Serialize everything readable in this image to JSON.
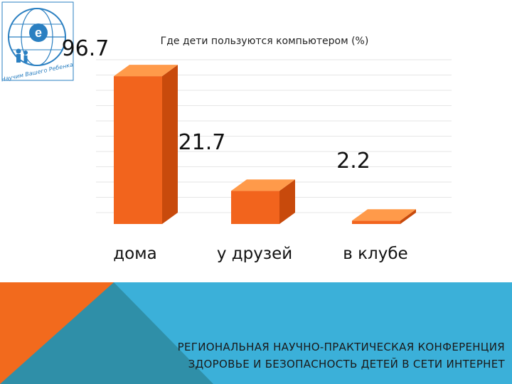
{
  "colors": {
    "bar_front": "#f2641d",
    "bar_top": "#ff9a4a",
    "bar_side": "#c84a0c",
    "footer_blue": "#3bb0d9",
    "footer_orange": "#f26a1d",
    "footer_teal": "#2f8fa8",
    "grid": "#e6e6e6",
    "logo_blue": "#2a7fc1"
  },
  "logo": {
    "text": "Научим Вашего Ребенка",
    "icon": "e-globe-logo-icon"
  },
  "chart_data": {
    "type": "bar",
    "title": "Где дети пользуются компьютером (%)",
    "categories": [
      "дома",
      "у друзей",
      "в клубе"
    ],
    "values": [
      96.7,
      21.7,
      2.2
    ],
    "value_labels": [
      "96.7",
      "21.7",
      "2.2"
    ],
    "ylim": [
      0,
      100
    ],
    "grid": true,
    "legend": "none",
    "xlabel": "",
    "ylabel": "",
    "style": "3d"
  },
  "footer": {
    "line1": "РЕГИОНАЛЬНАЯ НАУЧНО-ПРАКТИЧЕСКАЯ КОНФЕРЕНЦИЯ",
    "line2": "ЗДОРОВЬЕ И БЕЗОПАСНОСТЬ ДЕТЕЙ В СЕТИ ИНТЕРНЕТ"
  }
}
